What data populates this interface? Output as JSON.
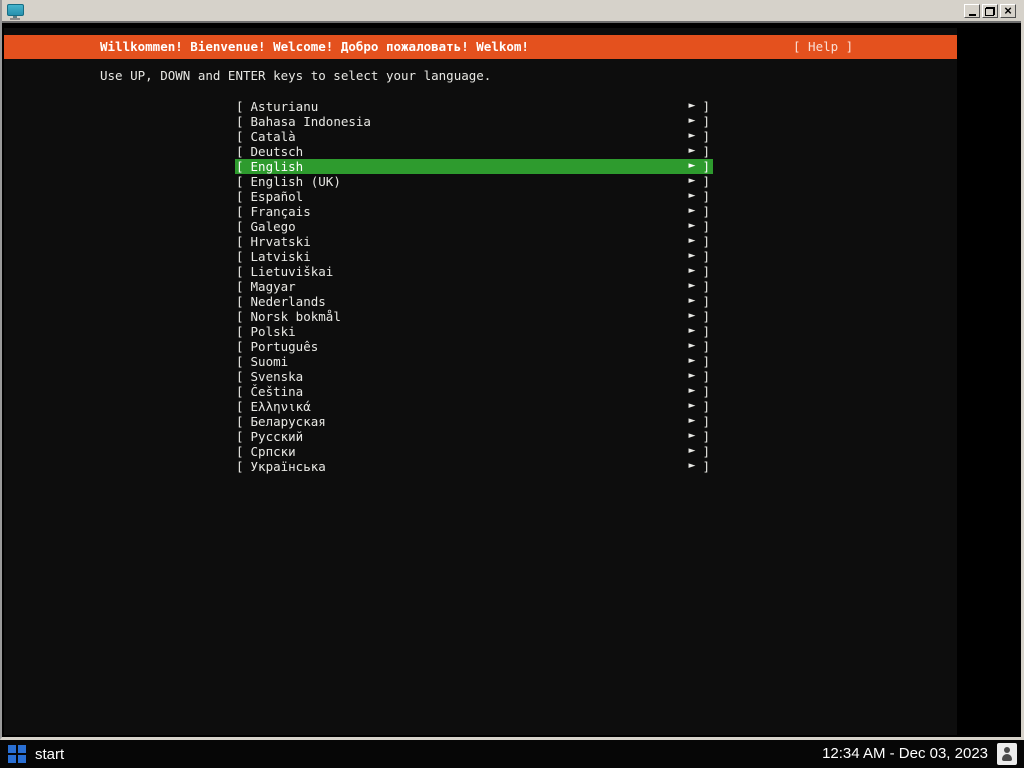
{
  "window": {
    "titlebar": {
      "app_icon": "monitor",
      "close_glyph": "×"
    }
  },
  "installer": {
    "banner_title": "Willkommen! Bienvenue! Welcome! Добро пожаловать! Welkom!",
    "help_label": "[ Help ]",
    "instruction": "Use UP, DOWN and ENTER keys to select your language.",
    "list": {
      "bracket_open": "[",
      "bracket_close": "]",
      "arrow": "►",
      "selected_index": 4,
      "selected_language": "English",
      "languages": [
        "Asturianu",
        "Bahasa Indonesia",
        "Català",
        "Deutsch",
        "English",
        "English (UK)",
        "Español",
        "Français",
        "Galego",
        "Hrvatski",
        "Latviski",
        "Lietuviškai",
        "Magyar",
        "Nederlands",
        "Norsk bokmål",
        "Polski",
        "Português",
        "Suomi",
        "Svenska",
        "Čeština",
        "Ελληνικά",
        "Беларуская",
        "Русский",
        "Српски",
        "Українська"
      ]
    }
  },
  "taskbar": {
    "start_label": "start",
    "clock": "12:34 AM - Dec 03, 2023"
  },
  "colors": {
    "banner_orange": "#e4511e",
    "highlight_green": "#2e9b2e",
    "console_text": "#e8e8e4",
    "chrome_gray": "#d6d2ca",
    "taskbar_bg": "#060606",
    "logo_blue": "#2a6fd3"
  }
}
